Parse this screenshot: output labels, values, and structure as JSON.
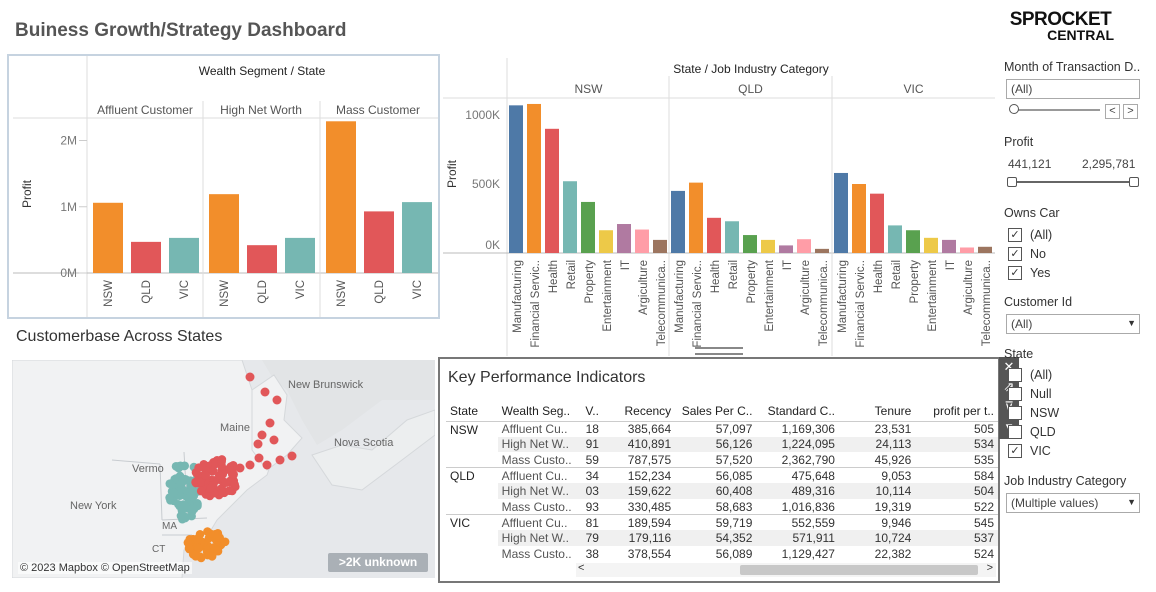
{
  "dashboard": {
    "title": "Buiness Growth/Strategy Dashboard"
  },
  "logo": {
    "line1": "SPROCKET",
    "line2": "CENTRAL"
  },
  "colors": {
    "NSW": "#f28e2b",
    "QLD": "#e15759",
    "VIC": "#76b7b2"
  },
  "chart_data": [
    {
      "type": "bar",
      "title": "Wealth Segment / State",
      "ylabel": "Profit",
      "ylim": [
        0,
        2400000
      ],
      "yticks": [
        "0M",
        "1M",
        "2M"
      ],
      "panels": [
        {
          "name": "Affluent Customer",
          "categories": [
            "NSW",
            "QLD",
            "VIC"
          ],
          "values": [
            1060000,
            470000,
            530000
          ]
        },
        {
          "name": "High Net Worth",
          "categories": [
            "NSW",
            "QLD",
            "VIC"
          ],
          "values": [
            1190000,
            420000,
            530000
          ]
        },
        {
          "name": "Mass Customer",
          "categories": [
            "NSW",
            "QLD",
            "VIC"
          ],
          "values": [
            2290000,
            930000,
            1070000
          ]
        }
      ]
    },
    {
      "type": "bar",
      "title": "State / Job Industry Category",
      "ylabel": "Profit",
      "ylim": [
        0,
        1200000
      ],
      "yticks": [
        "0K",
        "500K",
        "1000K"
      ],
      "categories": [
        "Manufacturing",
        "Financial Servic..",
        "Health",
        "Retail",
        "Property",
        "Entertainment",
        "IT",
        "Argiculture",
        "Telecommunica.."
      ],
      "category_colors": [
        "#4e79a7",
        "#f28e2b",
        "#e15759",
        "#76b7b2",
        "#59a14f",
        "#edc948",
        "#b07aa1",
        "#ff9da7",
        "#9c755f"
      ],
      "panels": [
        {
          "name": "NSW",
          "values": [
            1070000,
            1080000,
            900000,
            520000,
            370000,
            165000,
            210000,
            170000,
            95000
          ]
        },
        {
          "name": "QLD",
          "values": [
            450000,
            510000,
            255000,
            230000,
            130000,
            95000,
            55000,
            100000,
            30000
          ]
        },
        {
          "name": "VIC",
          "values": [
            580000,
            500000,
            430000,
            200000,
            165000,
            110000,
            95000,
            40000,
            45000
          ]
        }
      ]
    }
  ],
  "map": {
    "title": "Customerbase Across States",
    "labels": [
      "New Brunswick",
      "Maine",
      "Nova Scotia",
      "Vermo",
      "New York",
      "MA",
      "CT"
    ],
    "attribution": "© 2023 Mapbox © OpenStreetMap",
    "unknown_badge": ">2K unknown"
  },
  "kpi": {
    "title": "Key Performance Indicators",
    "columns": [
      "State",
      "Wealth Seg..",
      "V..",
      "Recency",
      "Sales Per C..",
      "Standard C..",
      "Tenure",
      "profit per t.."
    ],
    "rows": [
      [
        "NSW",
        "Affluent Cu..",
        "18",
        "385,664",
        "57,097",
        "1,169,306",
        "23,531",
        "505"
      ],
      [
        "",
        "High Net W..",
        "91",
        "410,891",
        "56,126",
        "1,224,095",
        "24,113",
        "534"
      ],
      [
        "",
        "Mass Custo..",
        "59",
        "787,575",
        "57,520",
        "2,362,790",
        "45,926",
        "535"
      ],
      [
        "QLD",
        "Affluent Cu..",
        "34",
        "152,234",
        "56,085",
        "475,648",
        "9,053",
        "584"
      ],
      [
        "",
        "High Net W..",
        "03",
        "159,622",
        "60,408",
        "489,316",
        "10,114",
        "504"
      ],
      [
        "",
        "Mass Custo..",
        "93",
        "330,485",
        "58,683",
        "1,016,836",
        "19,319",
        "522"
      ],
      [
        "VIC",
        "Affluent Cu..",
        "81",
        "189,594",
        "59,719",
        "552,559",
        "9,946",
        "545"
      ],
      [
        "",
        "High Net W..",
        "79",
        "179,116",
        "54,352",
        "571,911",
        "10,724",
        "537"
      ],
      [
        "",
        "Mass Custo..",
        "38",
        "378,554",
        "56,089",
        "1,129,427",
        "22,382",
        "524"
      ]
    ],
    "scroll_left": "<",
    "scroll_right": ">"
  },
  "filters": {
    "month": {
      "title": "Month of Transaction D..",
      "value": "(All)",
      "prev": "<",
      "next": ">"
    },
    "profit": {
      "title": "Profit",
      "min": "441,121",
      "max": "2,295,781"
    },
    "owns_car": {
      "title": "Owns Car",
      "options": [
        {
          "label": "(All)",
          "checked": true
        },
        {
          "label": "No",
          "checked": true
        },
        {
          "label": "Yes",
          "checked": true
        }
      ]
    },
    "customer_id": {
      "title": "Customer Id",
      "value": "(All)"
    },
    "state": {
      "title": "State",
      "options": [
        {
          "label": "(All)",
          "checked": false
        },
        {
          "label": "Null",
          "checked": false
        },
        {
          "label": "NSW",
          "checked": false
        },
        {
          "label": "QLD",
          "checked": false
        },
        {
          "label": "VIC",
          "checked": true
        }
      ]
    },
    "job_industry": {
      "title": "Job Industry Category",
      "value": "(Multiple values)"
    }
  }
}
